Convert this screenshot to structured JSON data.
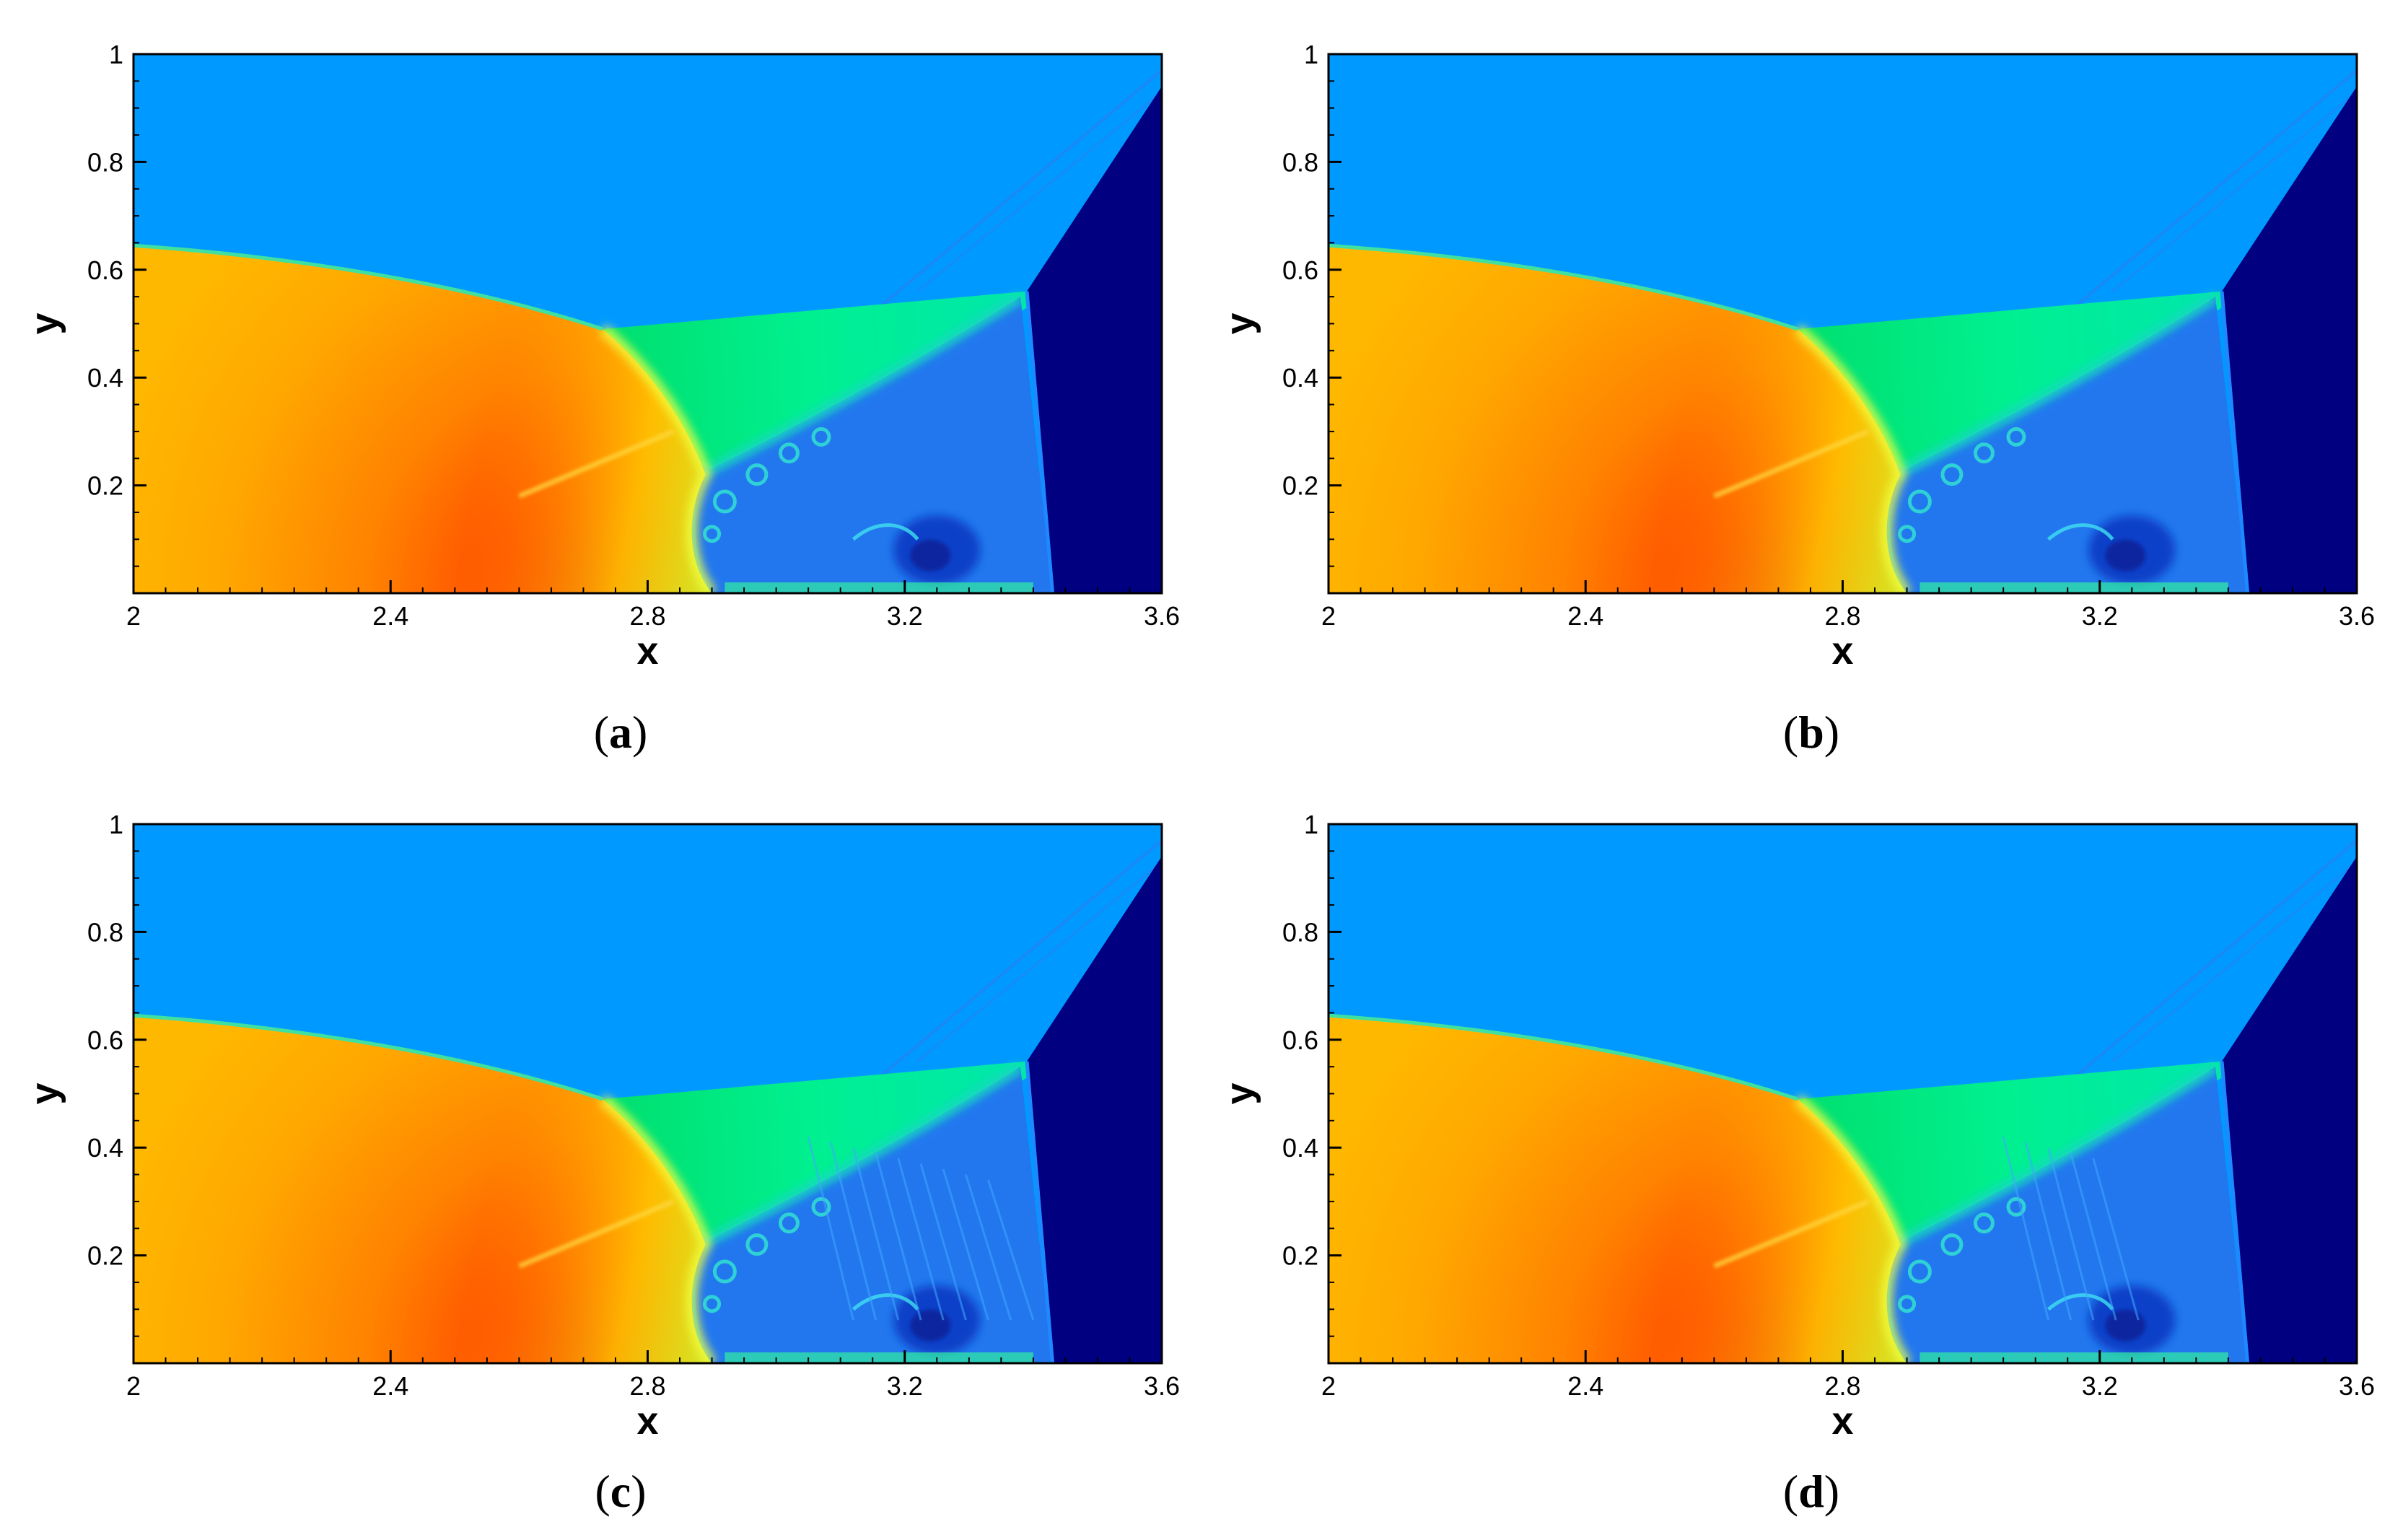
{
  "panels": [
    {
      "caption_letter": "a",
      "variant": "a"
    },
    {
      "caption_letter": "b",
      "variant": "b"
    },
    {
      "caption_letter": "c",
      "variant": "c"
    },
    {
      "caption_letter": "d",
      "variant": "d"
    }
  ],
  "chart_data": [
    {
      "type": "heatmap",
      "panel": "a",
      "xlabel": "x",
      "ylabel": "y",
      "xlim": [
        2,
        3.6
      ],
      "ylim": [
        0,
        1
      ],
      "xticks": [
        2,
        2.4,
        2.8,
        3.2,
        3.6
      ],
      "yticks": [
        0.2,
        0.4,
        0.6,
        0.8,
        1
      ],
      "xtick_labels": [
        "2",
        "2.4",
        "2.8",
        "3.2",
        "3.6"
      ],
      "ytick_labels": [
        "0.2",
        "0.4",
        "0.6",
        "0.8",
        "1"
      ],
      "colormap": "jet",
      "colors": {
        "ambient": "#0099ff",
        "shocked": "#00e676",
        "unshocked_gas": "#000080",
        "hot_core": "#ff7800",
        "vortex_region": "#2277ee"
      }
    },
    {
      "type": "heatmap",
      "panel": "b",
      "xlabel": "x",
      "ylabel": "y",
      "xlim": [
        2,
        3.6
      ],
      "ylim": [
        0,
        1
      ],
      "xticks": [
        2,
        2.4,
        2.8,
        3.2,
        3.6
      ],
      "yticks": [
        0.2,
        0.4,
        0.6,
        0.8,
        1
      ],
      "xtick_labels": [
        "2",
        "2.4",
        "2.8",
        "3.2",
        "3.6"
      ],
      "ytick_labels": [
        "0.2",
        "0.4",
        "0.6",
        "0.8",
        "1"
      ],
      "colormap": "jet",
      "colors": {
        "ambient": "#0099ff",
        "shocked": "#00e676",
        "unshocked_gas": "#000080",
        "hot_core": "#ff7800",
        "vortex_region": "#2277ee"
      }
    },
    {
      "type": "heatmap",
      "panel": "c",
      "xlabel": "x",
      "ylabel": "y",
      "xlim": [
        2,
        3.6
      ],
      "ylim": [
        0,
        1
      ],
      "xticks": [
        2,
        2.4,
        2.8,
        3.2,
        3.6
      ],
      "yticks": [
        0.2,
        0.4,
        0.6,
        0.8,
        1
      ],
      "xtick_labels": [
        "2",
        "2.4",
        "2.8",
        "3.2",
        "3.6"
      ],
      "ytick_labels": [
        "0.2",
        "0.4",
        "0.6",
        "0.8",
        "1"
      ],
      "colormap": "jet",
      "colors": {
        "ambient": "#0099ff",
        "shocked": "#00e676",
        "unshocked_gas": "#000080",
        "hot_core": "#ff7800",
        "vortex_region": "#2277ee"
      }
    },
    {
      "type": "heatmap",
      "panel": "d",
      "xlabel": "x",
      "ylabel": "y",
      "xlim": [
        2,
        3.6
      ],
      "ylim": [
        0,
        1
      ],
      "xticks": [
        2,
        2.4,
        2.8,
        3.2,
        3.6
      ],
      "yticks": [
        0.2,
        0.4,
        0.6,
        0.8,
        1
      ],
      "xtick_labels": [
        "2",
        "2.4",
        "2.8",
        "3.2",
        "3.6"
      ],
      "ytick_labels": [
        "0.2",
        "0.4",
        "0.6",
        "0.8",
        "1"
      ],
      "colormap": "jet",
      "colors": {
        "ambient": "#0099ff",
        "shocked": "#00e676",
        "unshocked_gas": "#000080",
        "hot_core": "#ff7800",
        "vortex_region": "#2277ee"
      }
    }
  ]
}
